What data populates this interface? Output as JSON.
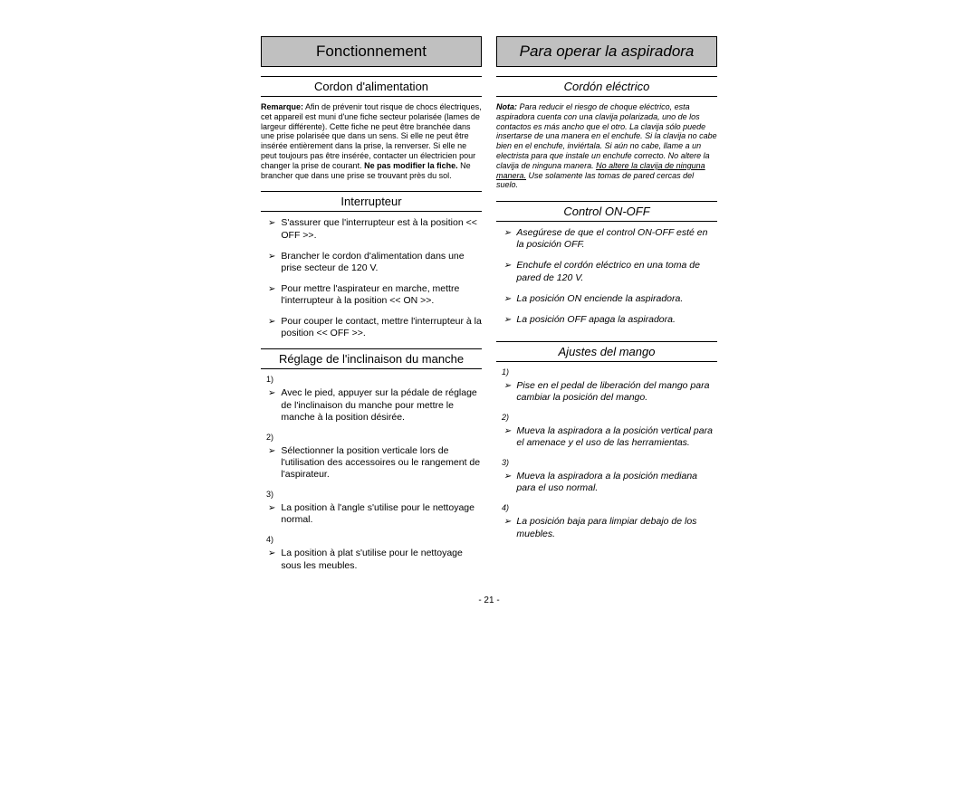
{
  "page_number": "- 21 -",
  "left": {
    "title": "Fonctionnement",
    "section1": {
      "heading": "Cordon d'alimentation",
      "note_label": "Remarque:",
      "note_text_1": " Afin de prévenir tout risque de chocs électriques, cet appareil est muni d'une fiche secteur polarisée (lames de largeur différente). Cette fiche ne peut être branchée dans une prise polarisée que dans un sens. Si elle ne peut être insérée entièrement dans la prise, la renverser. Si elle ne peut toujours pas être insérée, contacter un électricien pour changer la prise de courant. ",
      "note_bold": "Ne pas modifier la fiche.",
      "note_text_2": " Ne brancher que dans une prise se trouvant près du sol."
    },
    "section2": {
      "heading": "Interrupteur",
      "items": [
        "S'assurer que l'interrupteur est à la position << OFF >>.",
        "Brancher le cordon d'alimentation dans une prise secteur de 120 V.",
        "Pour mettre l'aspirateur en marche, mettre l'interrupteur à la position << ON >>.",
        "Pour couper le contact, mettre l'interrupteur à la position << OFF >>."
      ]
    },
    "section3": {
      "heading": "Réglage de l'inclinaison du manche",
      "steps": [
        {
          "num": "1)",
          "text": "Avec le pied, appuyer sur la pédale de réglage de l'inclinaison du manche pour mettre le manche à la position désirée."
        },
        {
          "num": "2)",
          "text": "Sélectionner la position verticale lors de l'utilisation des accessoires ou le rangement de l'aspirateur."
        },
        {
          "num": "3)",
          "text": "La position à l'angle s'utilise pour le nettoyage normal."
        },
        {
          "num": "4)",
          "text": "La position à plat s'utilise pour le nettoyage sous les meubles."
        }
      ]
    }
  },
  "right": {
    "title": "Para operar la aspiradora",
    "section1": {
      "heading": "Cordón eléctrico",
      "note_label": "Nota:",
      "note_text_1": " Para reducir el riesgo de choque eléctrico, esta aspiradora cuenta con una clavija polarizada, uno de los contactos es más ancho que el otro. La clavija sólo puede insertarse de una manera en el enchufe. Si la clavija no cabe bien en el enchufe, inviértala. Si aún no cabe, llame a un electrista para que instale un enchufe correcto. No altere la clavija de ninguna manera. ",
      "note_under": "No altere la clavija de ninguna manera.",
      "note_text_2": " Use solamente las tomas de pared cercas del suelo."
    },
    "section2": {
      "heading": "Control ON-OFF",
      "items": [
        "Asegúrese de que el control ON-OFF esté en la posición OFF.",
        "Enchufe el cordón eléctrico en una toma de pared de 120 V.",
        "La posición ON enciende la aspiradora.",
        "La posición OFF apaga la aspiradora."
      ]
    },
    "section3": {
      "heading": "Ajustes del mango",
      "steps": [
        {
          "num": "1)",
          "text": "Pise en el pedal de liberación del mango para cambiar la posición del mango."
        },
        {
          "num": "2)",
          "text": "Mueva la aspiradora a la posición vertical para el amenace y el uso de las herramientas."
        },
        {
          "num": "3)",
          "text": "Mueva la aspiradora a la posición mediana para el uso normal."
        },
        {
          "num": "4)",
          "text": "La posición baja para limpiar debajo de los muebles."
        }
      ]
    }
  }
}
